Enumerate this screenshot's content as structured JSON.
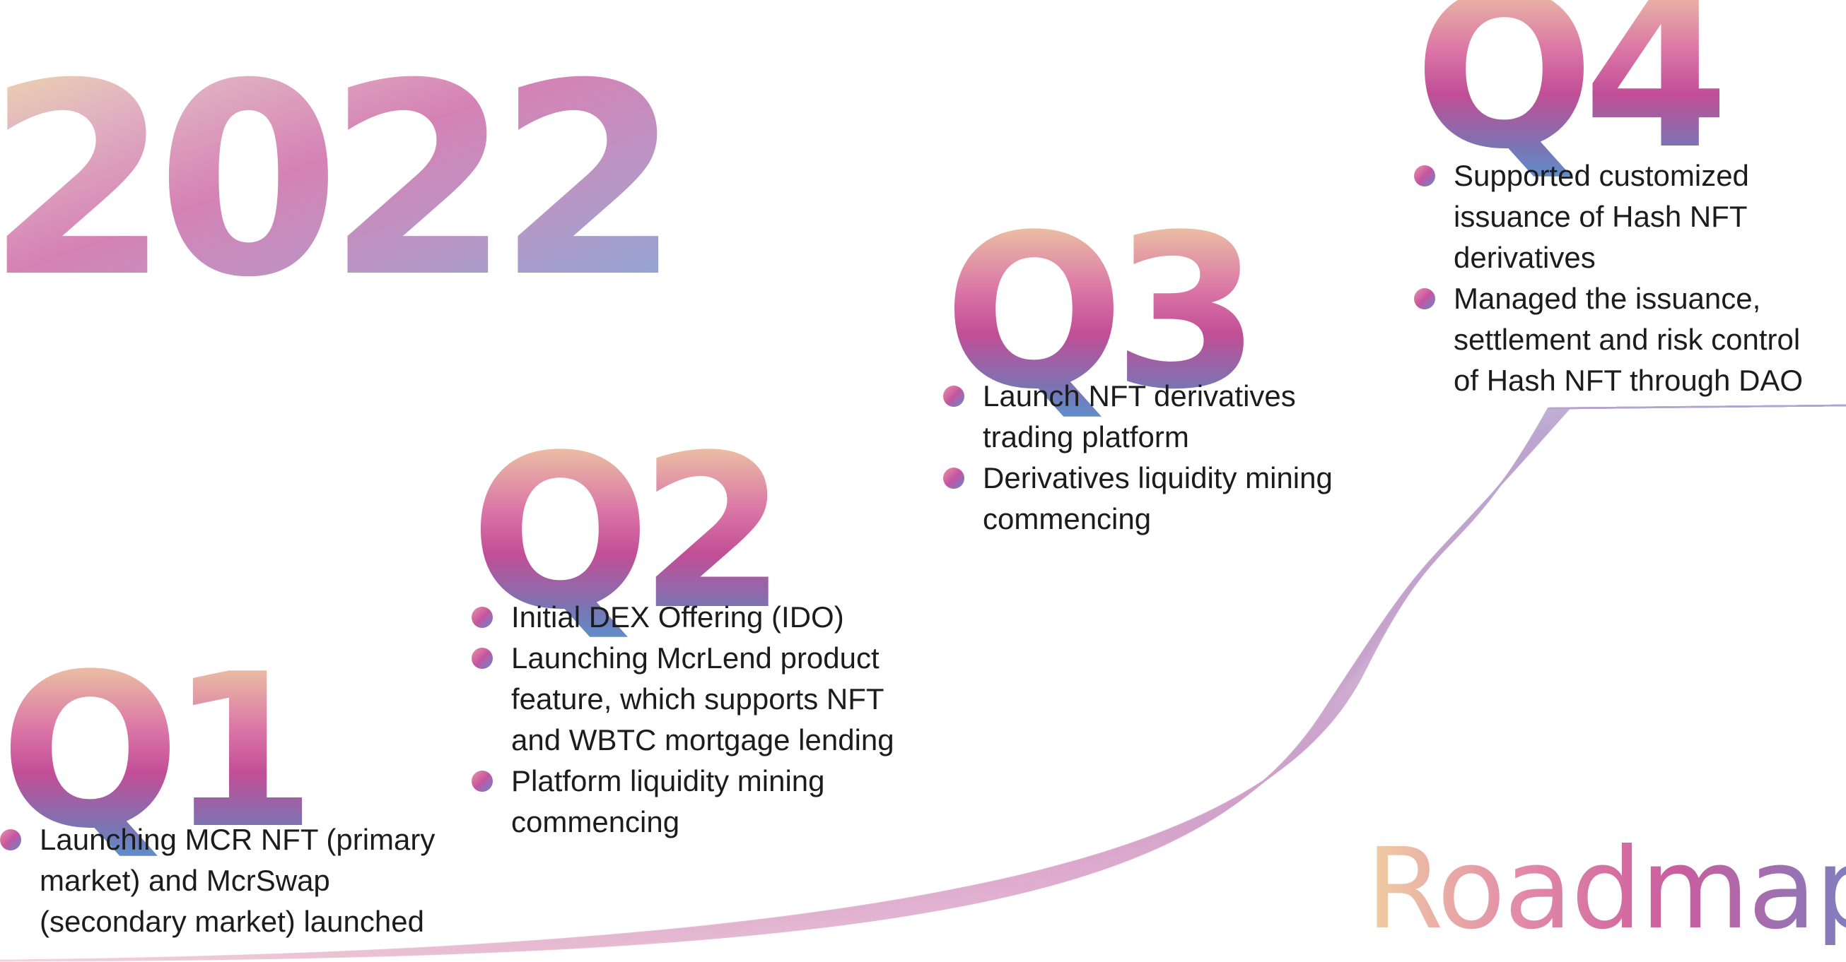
{
  "year": "2022",
  "title": "Roadmap",
  "quarters": [
    {
      "label": "Q1",
      "items": [
        [
          "Launching MCR NFT (primary",
          "market) and McrSwap",
          "(secondary market) launched"
        ]
      ]
    },
    {
      "label": "Q2",
      "items": [
        [
          "Initial DEX Offering (IDO)"
        ],
        [
          "Launching McrLend product",
          "feature, which supports NFT",
          "and WBTC mortgage lending"
        ],
        [
          "Platform liquidity mining",
          "commencing"
        ]
      ]
    },
    {
      "label": "Q3",
      "items": [
        [
          "Launch NFT derivatives",
          "trading platform"
        ],
        [
          "Derivatives liquidity mining",
          "commencing"
        ]
      ]
    },
    {
      "label": "Q4",
      "items": [
        [
          "Supported customized",
          "issuance of Hash NFT",
          "derivatives"
        ],
        [
          "Managed the issuance,",
          "settlement and risk control",
          "of Hash NFT through DAO"
        ]
      ]
    }
  ],
  "colors": {
    "curve_start": "#f2d2d8",
    "curve_mid": "#d9a0c8",
    "curve_end": "#a9a6d2",
    "text": "#1c1c1c",
    "bullet_gradient": [
      "#ee93a8",
      "#c455a0",
      "#5f8ccc"
    ]
  }
}
